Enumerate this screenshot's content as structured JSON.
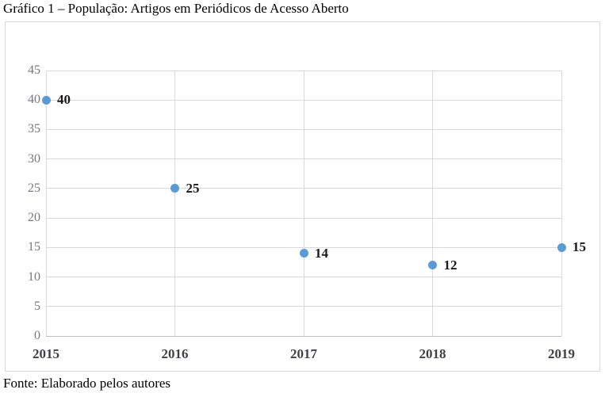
{
  "page": {
    "title": "Gráfico 1 – População: Artigos em Periódicos de Acesso Aberto",
    "source": "Fonte: Elaborado pelos autores"
  },
  "chart_data": {
    "type": "scatter",
    "title": "Gráfico 1 – População: Artigos em Periódicos de Acesso Aberto",
    "x": [
      2015,
      2016,
      2017,
      2018,
      2019
    ],
    "values": [
      40,
      25,
      14,
      12,
      15
    ],
    "data_labels": [
      "40",
      "25",
      "14",
      "12",
      "15"
    ],
    "xlabel": "",
    "ylabel": "",
    "xlim": [
      2015,
      2019
    ],
    "ylim": [
      0,
      45
    ],
    "y_ticks": [
      0,
      5,
      10,
      15,
      20,
      25,
      30,
      35,
      40,
      45
    ],
    "x_ticks": [
      "2015",
      "2016",
      "2017",
      "2018",
      "2019"
    ],
    "grid": true,
    "legend": "none",
    "colors": {
      "point": "#5B9BD5",
      "gridline": "#D9D9D9",
      "axis_line": "#BFBFBF",
      "y_tick_label": "#77777F",
      "x_tick_label": "#3F3F46",
      "data_label": "#1A1A1A",
      "frame_border": "#D9D9D9"
    }
  }
}
